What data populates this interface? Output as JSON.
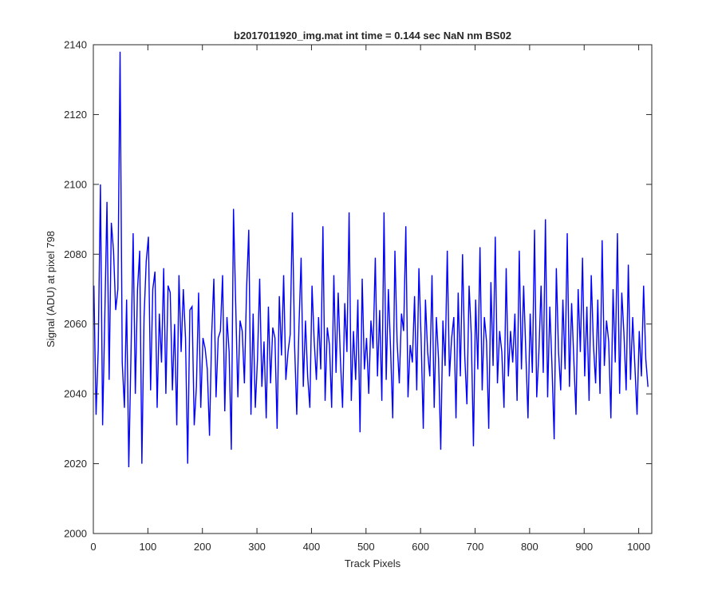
{
  "chart_data": {
    "type": "line",
    "title": "b2017011920_img.mat int time = 0.144 sec  NaN nm BS02",
    "xlabel": "Track Pixels",
    "ylabel": "Signal (ADU) at pixel 798",
    "xlim": [
      0,
      1024
    ],
    "ylim": [
      2000,
      2140
    ],
    "xticks": [
      0,
      100,
      200,
      300,
      400,
      500,
      600,
      700,
      800,
      900,
      1000
    ],
    "yticks": [
      2000,
      2020,
      2040,
      2060,
      2080,
      2100,
      2120,
      2140
    ],
    "grid": false,
    "legend": "none",
    "series": [
      {
        "color": "#0000ff",
        "x_start": 1,
        "x_step": 4,
        "values": [
          2071,
          2034,
          2053,
          2100,
          2031,
          2062,
          2095,
          2044,
          2089,
          2081,
          2064,
          2070,
          2138,
          2049,
          2036,
          2067,
          2019,
          2051,
          2086,
          2040,
          2070,
          2081,
          2020,
          2062,
          2078,
          2085,
          2041,
          2070,
          2075,
          2036,
          2063,
          2049,
          2076,
          2040,
          2071,
          2069,
          2041,
          2060,
          2031,
          2074,
          2052,
          2070,
          2056,
          2020,
          2064,
          2065,
          2031,
          2042,
          2069,
          2036,
          2056,
          2053,
          2047,
          2028,
          2057,
          2073,
          2039,
          2056,
          2058,
          2074,
          2035,
          2062,
          2052,
          2024,
          2093,
          2066,
          2039,
          2061,
          2058,
          2043,
          2070,
          2087,
          2034,
          2063,
          2036,
          2050,
          2073,
          2042,
          2055,
          2033,
          2065,
          2043,
          2059,
          2056,
          2030,
          2068,
          2051,
          2074,
          2044,
          2052,
          2057,
          2092,
          2054,
          2034,
          2059,
          2079,
          2042,
          2061,
          2045,
          2036,
          2071,
          2055,
          2044,
          2062,
          2047,
          2088,
          2038,
          2059,
          2054,
          2036,
          2074,
          2046,
          2069,
          2050,
          2036,
          2066,
          2052,
          2092,
          2038,
          2058,
          2044,
          2067,
          2029,
          2073,
          2047,
          2056,
          2040,
          2061,
          2053,
          2079,
          2045,
          2064,
          2038,
          2092,
          2044,
          2070,
          2053,
          2033,
          2081,
          2055,
          2043,
          2063,
          2058,
          2088,
          2039,
          2054,
          2049,
          2068,
          2041,
          2076,
          2056,
          2030,
          2067,
          2052,
          2045,
          2074,
          2036,
          2062,
          2050,
          2024,
          2061,
          2048,
          2081,
          2045,
          2056,
          2062,
          2033,
          2069,
          2045,
          2080,
          2051,
          2037,
          2071,
          2057,
          2025,
          2067,
          2047,
          2082,
          2041,
          2062,
          2055,
          2030,
          2072,
          2048,
          2085,
          2043,
          2058,
          2052,
          2036,
          2076,
          2045,
          2058,
          2049,
          2063,
          2038,
          2081,
          2047,
          2071,
          2052,
          2033,
          2063,
          2046,
          2087,
          2039,
          2052,
          2071,
          2046,
          2090,
          2039,
          2065,
          2048,
          2027,
          2076,
          2052,
          2041,
          2067,
          2047,
          2086,
          2042,
          2066,
          2050,
          2034,
          2070,
          2052,
          2079,
          2045,
          2065,
          2038,
          2074,
          2054,
          2043,
          2067,
          2040,
          2084,
          2048,
          2061,
          2055,
          2033,
          2070,
          2049,
          2086,
          2040,
          2069,
          2057,
          2041,
          2077,
          2044,
          2062,
          2048,
          2034,
          2058,
          2045,
          2071,
          2050,
          2042
        ]
      }
    ]
  }
}
